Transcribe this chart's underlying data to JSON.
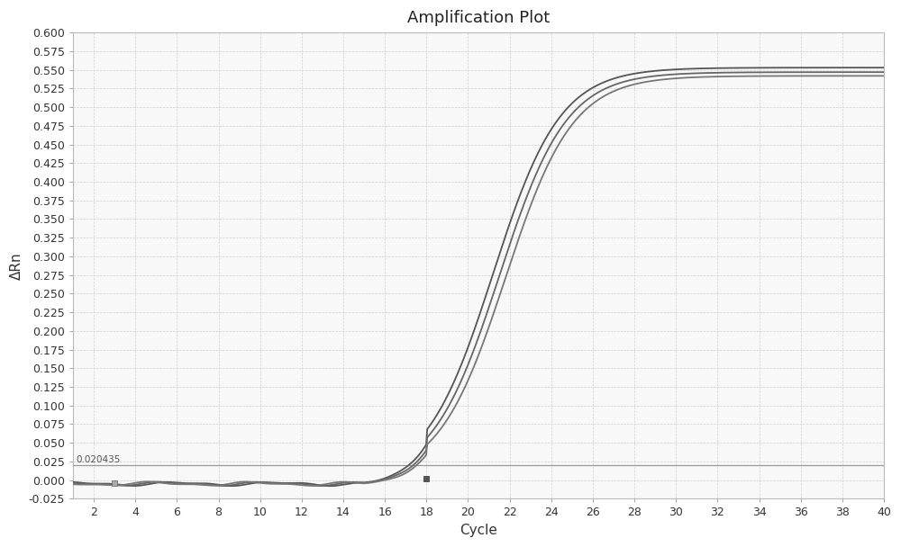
{
  "title": "Amplification Plot",
  "xlabel": "Cycle",
  "ylabel": "ΔRn",
  "xlim": [
    1,
    40
  ],
  "ylim": [
    -0.025,
    0.6
  ],
  "xticks": [
    2,
    4,
    6,
    8,
    10,
    12,
    14,
    16,
    18,
    20,
    22,
    24,
    26,
    28,
    30,
    32,
    34,
    36,
    38,
    40
  ],
  "yticks": [
    -0.025,
    0.0,
    0.025,
    0.05,
    0.075,
    0.1,
    0.125,
    0.15,
    0.175,
    0.2,
    0.225,
    0.25,
    0.275,
    0.3,
    0.325,
    0.35,
    0.375,
    0.4,
    0.425,
    0.45,
    0.475,
    0.5,
    0.525,
    0.55,
    0.575,
    0.6
  ],
  "threshold": 0.020435,
  "threshold_label": "0.020435",
  "background_color": "#f8f8f8",
  "grid_color": "#cccccc",
  "threshold_line_color": "#999999",
  "n_curves": 3,
  "sigmoid_midpoints": [
    21.2,
    21.5,
    21.8
  ],
  "sigmoid_steepness": [
    0.62,
    0.62,
    0.62
  ],
  "sigmoid_max": [
    0.553,
    0.547,
    0.542
  ],
  "title_fontsize": 13,
  "axis_label_fontsize": 11,
  "tick_fontsize": 9
}
